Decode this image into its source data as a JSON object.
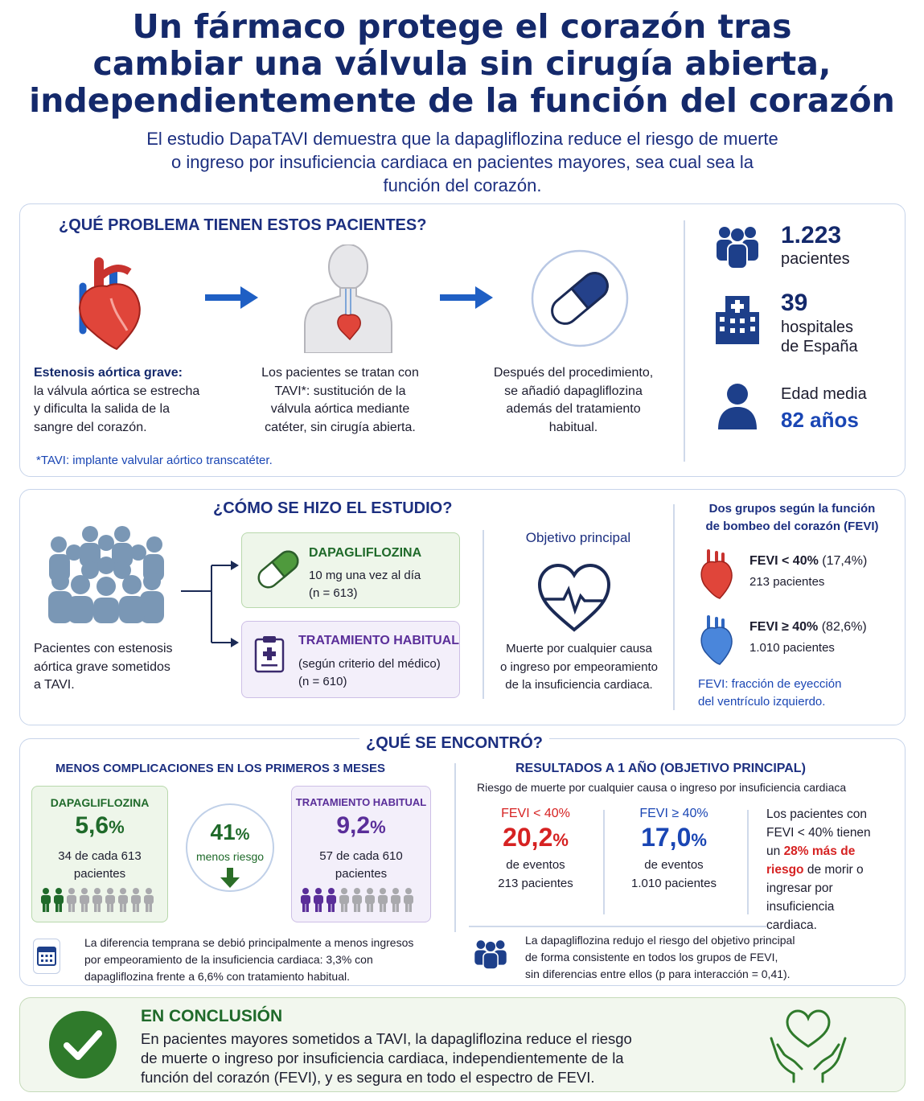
{
  "header": {
    "title_lines": [
      "Un fármaco protege el corazón tras",
      "cambiar una válvula sin cirugía abierta,",
      "independientemente de la función del corazón"
    ],
    "subtitle_lines": [
      "El estudio DapaTAVI demuestra que la dapagliflozina reduce el riesgo de muerte",
      "o ingreso por insuficiencia cardiaca en pacientes mayores, sea cual sea la",
      "función del corazón."
    ]
  },
  "problem": {
    "title": "¿QUÉ PROBLEMA TIENEN ESTOS PACIENTES?",
    "step1_bold": "Estenosis aórtica grave:",
    "step1_lines": [
      "la válvula aórtica se estrecha",
      "y dificulta la salida de la",
      "sangre del corazón."
    ],
    "step2_lines": [
      "Los pacientes se tratan con",
      "TAVI*: sustitución de la",
      "válvula aórtica mediante",
      "catéter, sin cirugía abierta."
    ],
    "step3_lines": [
      "Después del procedimiento,",
      "se añadió dapagliflozina",
      "además del tratamiento",
      "habitual."
    ],
    "footnote": "*TAVI: implante valvular aórtico transcatéter.",
    "stats": [
      {
        "icon": "people-group-icon",
        "value": "1.223",
        "label_lines": [
          "pacientes"
        ]
      },
      {
        "icon": "hospital-icon",
        "value": "39",
        "label_lines": [
          "hospitales",
          "de España"
        ]
      },
      {
        "icon": "person-icon",
        "label_lines": [
          "Edad media"
        ],
        "value": "82 años"
      }
    ]
  },
  "study": {
    "title": "¿CÓMO SE HIZO EL ESTUDIO?",
    "population_lines": [
      "Pacientes con estenosis",
      "aórtica grave sometidos",
      "a TAVI."
    ],
    "arm1": {
      "name": "DAPAGLIFLOZINA",
      "line1": "10 mg una vez al día",
      "line2": "(n = 613)"
    },
    "arm2": {
      "name": "TRATAMIENTO HABITUAL",
      "line1": "(según criterio del médico)",
      "line2": "(n = 610)"
    },
    "objective_title": "Objetivo principal",
    "objective_lines": [
      "Muerte por cualquier causa",
      "o ingreso por empeoramiento",
      "de la insuficiencia cardiaca."
    ],
    "groups_title_lines": [
      "Dos grupos según la función",
      "de bombeo del corazón (FEVI)"
    ],
    "group1": {
      "label": "FEVI < 40%",
      "pct": "(17,4%)",
      "patients": "213 pacientes",
      "color": "#d62222"
    },
    "group2": {
      "label": "FEVI ≥ 40%",
      "pct": "(82,6%)",
      "patients": "1.010 pacientes",
      "color": "#3b78d4"
    },
    "fevi_note_lines": [
      "FEVI: fracción de eyección",
      "del ventrículo izquierdo."
    ]
  },
  "results": {
    "title": "¿QUÉ SE ENCONTRÓ?",
    "early_title": "MENOS COMPLICACIONES EN LOS PRIMEROS 3 MESES",
    "dapa": {
      "name": "DAPAGLIFLOZINA",
      "value": "5,6",
      "unit": "%",
      "line1": "34 de cada 613",
      "line2": "pacientes",
      "highlighted_people": 2,
      "total_people": 9
    },
    "usual": {
      "name": "TRATAMIENTO HABITUAL",
      "value": "9,2",
      "unit": "%",
      "line1": "57 de cada 610",
      "line2": "pacientes",
      "highlighted_people": 3,
      "total_people": 9
    },
    "reduction": {
      "value": "41",
      "unit": "%",
      "label": "menos riesgo"
    },
    "early_note_lines": [
      "La diferencia temprana se debió principalmente a menos ingresos",
      "por empeoramiento de la insuficiencia cardiaca: 3,3% con",
      "dapagliflozina frente a 6,6% con tratamiento habitual."
    ],
    "year_title": "RESULTADOS A 1 AÑO (OBJETIVO PRINCIPAL)",
    "year_subtitle": "Riesgo de muerte por cualquier causa o ingreso por insuficiencia cardiaca",
    "low": {
      "label": "FEVI < 40%",
      "value": "20,2",
      "unit": "%",
      "line1": "de eventos",
      "line2": "213 pacientes"
    },
    "high": {
      "label": "FEVI ≥ 40%",
      "value": "17,0",
      "unit": "%",
      "line1": "de eventos",
      "line2": "1.010 pacientes"
    },
    "side_note": {
      "line1": "Los pacientes con",
      "line2": "FEVI < 40% tienen",
      "line3a": "un ",
      "highlight1": "28% más de",
      "highlight2": "riesgo",
      "line4b": " de morir o",
      "line5": "ingresar por",
      "line6": "insuficiencia",
      "line7": "cardiaca."
    },
    "consistency_lines": [
      "La dapagliflozina redujo el riesgo del objetivo principal",
      "de forma consistente en todos los grupos de FEVI,",
      "sin diferencias entre ellos (p para interacción = 0,41)."
    ]
  },
  "conclusion": {
    "title": "EN CONCLUSIÓN",
    "lines": [
      "En pacientes mayores sometidos a TAVI, la dapagliflozina reduce el riesgo",
      "de muerte o ingreso por insuficiencia cardiaca, independientemente de la",
      "función del corazón (FEVI), y es segura en todo el espectro de FEVI."
    ]
  },
  "colors": {
    "navy": "#14296b",
    "green": "#1f6a2a",
    "purple": "#5a2e99",
    "red": "#d62222",
    "blue": "#1a46b4"
  }
}
